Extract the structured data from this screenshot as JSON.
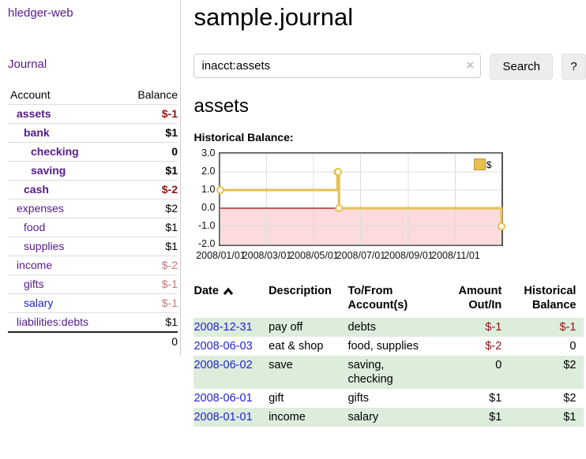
{
  "app": {
    "brand": "hledger-web",
    "journal_link": "Journal"
  },
  "sidebar": {
    "col_account": "Account",
    "col_balance": "Balance",
    "accounts": [
      {
        "name": "assets",
        "balance": "$-1",
        "indent": 1,
        "bold": true,
        "name_color": "purple",
        "balance_color": "neg-strong"
      },
      {
        "name": "bank",
        "balance": "$1",
        "indent": 2,
        "bold": true,
        "name_color": "purple",
        "balance_color": "normal"
      },
      {
        "name": "checking",
        "balance": "0",
        "indent": 3,
        "bold": true,
        "name_color": "purple",
        "balance_color": "normal"
      },
      {
        "name": "saving",
        "balance": "$1",
        "indent": 3,
        "bold": true,
        "name_color": "purple",
        "balance_color": "normal"
      },
      {
        "name": "cash",
        "balance": "$-2",
        "indent": 2,
        "bold": true,
        "name_color": "purple",
        "balance_color": "neg-strong"
      },
      {
        "name": "expenses",
        "balance": "$2",
        "indent": 1,
        "bold": false,
        "name_color": "purple",
        "balance_color": "normal"
      },
      {
        "name": "food",
        "balance": "$1",
        "indent": 2,
        "bold": false,
        "name_color": "purple",
        "balance_color": "normal"
      },
      {
        "name": "supplies",
        "balance": "$1",
        "indent": 2,
        "bold": false,
        "name_color": "purple",
        "balance_color": "normal"
      },
      {
        "name": "income",
        "balance": "$-2",
        "indent": 1,
        "bold": false,
        "name_color": "purple",
        "balance_color": "neg-light"
      },
      {
        "name": "gifts",
        "balance": "$-1",
        "indent": 2,
        "bold": false,
        "name_color": "purple",
        "balance_color": "neg-light"
      },
      {
        "name": "salary",
        "balance": "$-1",
        "indent": 2,
        "bold": false,
        "name_color": "blue",
        "balance_color": "neg-light"
      },
      {
        "name": "liabilities:debts",
        "balance": "$1",
        "indent": 1,
        "bold": false,
        "name_color": "purple",
        "balance_color": "normal"
      }
    ],
    "total": "0"
  },
  "main": {
    "title": "sample.journal",
    "search": {
      "value": "inacct:assets",
      "clear": "×",
      "button": "Search",
      "help": "?"
    },
    "account_heading": "assets",
    "section_label": "Historical Balance:"
  },
  "chart_data": {
    "type": "line",
    "step": true,
    "title": "Historical Balance",
    "x": [
      "2008-01-01",
      "2008-06-01",
      "2008-06-02",
      "2008-06-03",
      "2008-12-31"
    ],
    "series": [
      {
        "name": "$",
        "values": [
          1,
          2,
          2,
          0,
          -1
        ]
      }
    ],
    "x_domain": [
      "2008-01-01",
      "2008-12-31"
    ],
    "x_tick_labels": [
      "2008/01/01",
      "2008/03/01",
      "2008/05/01",
      "2008/07/01",
      "2008/09/01",
      "2008/11/01"
    ],
    "y_ticks": [
      "3.0",
      "2.0",
      "1.0",
      "0.0",
      "-1.0",
      "-2.0"
    ],
    "ylim": [
      -2,
      3
    ],
    "grid": true,
    "legend": "$",
    "legend_position": "top-right"
  },
  "register": {
    "headers": {
      "date": "Date",
      "description": "Description",
      "tofrom": "To/From Account(s)",
      "amount": "Amount Out/In",
      "balance": "Historical Balance"
    },
    "rows": [
      {
        "date": "2008-12-31",
        "description": "pay off",
        "accounts": "debts",
        "amount": "$-1",
        "balance": "$-1",
        "amount_neg": true,
        "balance_neg": true
      },
      {
        "date": "2008-06-03",
        "description": "eat & shop",
        "accounts": "food, supplies",
        "amount": "$-2",
        "balance": "0",
        "amount_neg": true,
        "balance_neg": false
      },
      {
        "date": "2008-06-02",
        "description": "save",
        "accounts": "saving, checking",
        "amount": "0",
        "balance": "$2",
        "amount_neg": false,
        "balance_neg": false
      },
      {
        "date": "2008-06-01",
        "description": "gift",
        "accounts": "gifts",
        "amount": "$1",
        "balance": "$2",
        "amount_neg": false,
        "balance_neg": false
      },
      {
        "date": "2008-01-01",
        "description": "income",
        "accounts": "salary",
        "amount": "$1",
        "balance": "$1",
        "amount_neg": false,
        "balance_neg": false
      }
    ]
  },
  "colors": {
    "purple_link": "#551a8b",
    "blue_link": "#2323cc",
    "neg_strong": "#8f1414",
    "neg_light": "#c47878",
    "row_green": "#dceddc",
    "line_gold": "#e7c050",
    "area_pink": "#fbdbdb",
    "zero_line": "#a40000",
    "chart_border": "#545454",
    "grid": "#dddddd"
  }
}
